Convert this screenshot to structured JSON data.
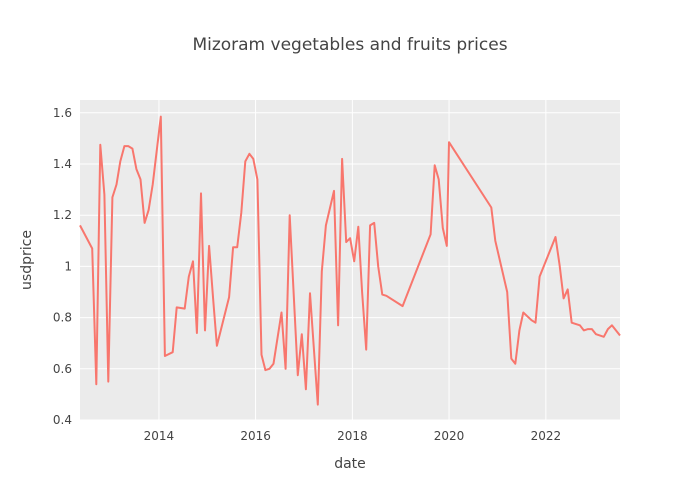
{
  "chart_data": {
    "type": "line",
    "title": "Mizoram vegetables and fruits prices",
    "xlabel": "date",
    "ylabel": "usdprice",
    "xlim": [
      "2012-05-15",
      "2023-07-15"
    ],
    "ylim": [
      0.4,
      1.65
    ],
    "x_ticks": [
      "2014-01-01",
      "2016-01-01",
      "2018-01-01",
      "2020-01-01",
      "2022-01-01"
    ],
    "x_tick_labels": [
      "2014",
      "2016",
      "2018",
      "2020",
      "2022"
    ],
    "y_ticks": [
      0.4,
      0.6,
      0.8,
      1.0,
      1.2,
      1.4,
      1.6
    ],
    "y_tick_labels": [
      "0.4",
      "0.6",
      "0.8",
      "1",
      "1.2",
      "1.4",
      "1.6"
    ],
    "grid": true,
    "legend": "none",
    "background": "#ebebeb",
    "line_color": "#f8766d",
    "series": [
      {
        "x": [
          "2012-05-15",
          "2012-08-15",
          "2012-09-15",
          "2012-10-15",
          "2012-11-15",
          "2012-12-15",
          "2013-01-15",
          "2013-02-15",
          "2013-03-15",
          "2013-04-15",
          "2013-05-15",
          "2013-06-15",
          "2013-07-15",
          "2013-08-15",
          "2013-09-15",
          "2013-10-15",
          "2013-11-15",
          "2014-01-15",
          "2014-02-15",
          "2014-04-15",
          "2014-05-15",
          "2014-07-15",
          "2014-08-15",
          "2014-09-15",
          "2014-10-15",
          "2014-11-15",
          "2014-12-15",
          "2015-01-15",
          "2015-02-15",
          "2015-03-15",
          "2015-06-15",
          "2015-07-15",
          "2015-08-15",
          "2015-09-15",
          "2015-10-15",
          "2015-11-15",
          "2015-12-15",
          "2016-01-15",
          "2016-02-15",
          "2016-03-15",
          "2016-04-15",
          "2016-05-15",
          "2016-07-15",
          "2016-08-15",
          "2016-09-15",
          "2016-11-15",
          "2016-12-15",
          "2017-01-15",
          "2017-02-15",
          "2017-04-15",
          "2017-05-15",
          "2017-06-15",
          "2017-08-15",
          "2017-09-15",
          "2017-10-15",
          "2017-11-15",
          "2017-12-15",
          "2018-01-15",
          "2018-02-15",
          "2018-03-15",
          "2018-04-15",
          "2018-05-15",
          "2018-06-15",
          "2018-07-15",
          "2018-08-15",
          "2018-09-15",
          "2019-01-15",
          "2019-08-15",
          "2019-09-15",
          "2019-10-15",
          "2019-11-15",
          "2019-12-15",
          "2020-01-01",
          "2020-11-15",
          "2020-12-15",
          "2021-03-15",
          "2021-04-15",
          "2021-05-15",
          "2021-06-15",
          "2021-07-15",
          "2021-09-15",
          "2021-10-15",
          "2021-11-15",
          "2022-03-15",
          "2022-04-15",
          "2022-05-15",
          "2022-06-15",
          "2022-07-15",
          "2022-09-15",
          "2022-10-15",
          "2022-11-15",
          "2022-12-15",
          "2023-01-15",
          "2023-03-15",
          "2023-04-15",
          "2023-05-15",
          "2023-07-15"
        ],
        "y": [
          1.16,
          1.07,
          0.54,
          1.475,
          1.28,
          0.55,
          1.27,
          1.32,
          1.41,
          1.47,
          1.47,
          1.46,
          1.38,
          1.34,
          1.17,
          1.22,
          1.32,
          1.585,
          0.65,
          0.665,
          0.84,
          0.835,
          0.96,
          1.02,
          0.74,
          1.285,
          0.75,
          1.08,
          0.87,
          0.69,
          0.88,
          1.075,
          1.075,
          1.21,
          1.41,
          1.44,
          1.42,
          1.34,
          0.655,
          0.595,
          0.6,
          0.62,
          0.82,
          0.6,
          1.2,
          0.575,
          0.735,
          0.52,
          0.895,
          0.46,
          0.98,
          1.16,
          1.295,
          0.77,
          1.42,
          1.095,
          1.11,
          1.02,
          1.155,
          0.9,
          0.675,
          1.16,
          1.17,
          1.0,
          0.89,
          0.885,
          0.845,
          1.125,
          1.395,
          1.34,
          1.15,
          1.08,
          1.485,
          1.23,
          1.1,
          0.9,
          0.64,
          0.62,
          0.75,
          0.82,
          0.79,
          0.78,
          0.96,
          1.115,
          1.005,
          0.875,
          0.91,
          0.78,
          0.77,
          0.75,
          0.755,
          0.755,
          0.735,
          0.725,
          0.755,
          0.77,
          0.73
        ]
      }
    ]
  }
}
